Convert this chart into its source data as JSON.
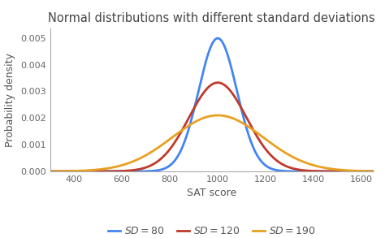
{
  "title": "Normal distributions with different standard deviations",
  "xlabel": "SAT score",
  "ylabel": "Probability density",
  "mean": 1000,
  "sds": [
    80,
    120,
    190
  ],
  "colors": [
    "#4285F4",
    "#C0392B",
    "#E8A020"
  ],
  "legend_labels": [
    "$SD= 80$",
    "$SD =120$",
    "$SD = 190$"
  ],
  "xlim": [
    300,
    1650
  ],
  "ylim": [
    0,
    0.00535
  ],
  "xticks": [
    400,
    600,
    800,
    1000,
    1200,
    1400,
    1600
  ],
  "yticks": [
    0.0,
    0.001,
    0.002,
    0.003,
    0.004,
    0.005
  ],
  "background_color": "#ffffff",
  "line_width": 2.0,
  "title_fontsize": 10.5,
  "label_fontsize": 9,
  "tick_fontsize": 8,
  "legend_fontsize": 9
}
